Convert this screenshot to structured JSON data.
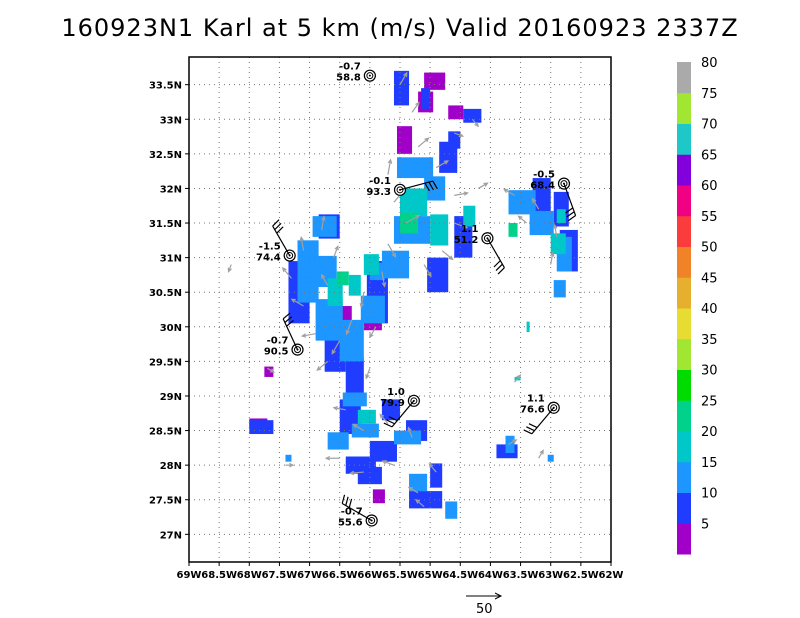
{
  "title": "160923N1 Karl at 5 km (m/s) Valid 20160923 2337Z",
  "map": {
    "lon_range": [
      -69,
      -62
    ],
    "lat_range": [
      26.6,
      33.9
    ],
    "lon_ticks": [
      -69,
      -68.5,
      -68,
      -67.5,
      -67,
      -66.5,
      -66,
      -65.5,
      -65,
      -64.5,
      -64,
      -63.5,
      -63,
      -62.5,
      -62
    ],
    "lon_tick_labels": [
      "69W",
      "68.5W",
      "68W",
      "67.5W",
      "67W",
      "66.5W",
      "66W",
      "65.5W",
      "65W",
      "64.5W",
      "64W",
      "63.5W",
      "63W",
      "62.5W",
      "62W"
    ],
    "lat_ticks": [
      27,
      27.5,
      28,
      28.5,
      29,
      29.5,
      30,
      30.5,
      31,
      31.5,
      32,
      32.5,
      33,
      33.5
    ],
    "lat_tick_labels": [
      "27N",
      "27.5N",
      "28N",
      "28.5N",
      "29N",
      "29.5N",
      "30N",
      "30.5N",
      "31N",
      "31.5N",
      "32N",
      "32.5N",
      "33N",
      "33.5N"
    ],
    "grid": true,
    "arrow_color": "#a0a0a0"
  },
  "colorbar": {
    "labels": [
      "5",
      "10",
      "15",
      "20",
      "25",
      "30",
      "35",
      "40",
      "45",
      "50",
      "55",
      "60",
      "65",
      "70",
      "75",
      "80"
    ],
    "colors": [
      "#a000c8",
      "#1f3cff",
      "#1e96ff",
      "#00c8c8",
      "#00d28c",
      "#00dc00",
      "#a0e632",
      "#e6dc32",
      "#e6af2d",
      "#f08228",
      "#fa3c3c",
      "#f00082",
      "#8200dc",
      "#1ec8c8",
      "#a0e632",
      "#aaaaaa"
    ]
  },
  "reference_vector": {
    "label": "50"
  },
  "observations": [
    {
      "lon": -66.0,
      "lat": 33.63,
      "top": "-0.7",
      "bottom": "58.8"
    },
    {
      "lon": -65.5,
      "lat": 31.98,
      "top": "-0.1",
      "bottom": "93.3"
    },
    {
      "lon": -62.78,
      "lat": 32.07,
      "top": "-0.5",
      "bottom": "68.4"
    },
    {
      "lon": -64.05,
      "lat": 31.28,
      "top": "1.1",
      "bottom": "51.2"
    },
    {
      "lon": -67.33,
      "lat": 31.03,
      "top": "-1.5",
      "bottom": "74.4"
    },
    {
      "lon": -67.2,
      "lat": 29.67,
      "top": "-0.7",
      "bottom": "90.5"
    },
    {
      "lon": -65.27,
      "lat": 28.93,
      "top": "1.0",
      "bottom": "79.9"
    },
    {
      "lon": -62.95,
      "lat": 28.83,
      "top": "1.1",
      "bottom": "76.6"
    },
    {
      "lon": -65.97,
      "lat": 27.2,
      "top": "-0.7",
      "bottom": "55.6"
    }
  ],
  "wind_field": [
    {
      "color": "#a000c8",
      "cells": [
        [
          -65.1,
          33.55,
          0.35,
          0.25
        ],
        [
          -65.2,
          33.25,
          0.25,
          0.3
        ],
        [
          -65.55,
          32.7,
          0.25,
          0.4
        ],
        [
          -66.7,
          30.15,
          0.4,
          0.3
        ],
        [
          -66.1,
          30.1,
          0.3,
          0.3
        ],
        [
          -65.95,
          27.55,
          0.2,
          0.2
        ],
        [
          -68.0,
          28.6,
          0.3,
          0.15
        ],
        [
          -67.75,
          29.35,
          0.15,
          0.15
        ],
        [
          -64.7,
          33.1,
          0.25,
          0.2
        ]
      ]
    },
    {
      "color": "#1f3cff",
      "cells": [
        [
          -65.6,
          33.45,
          0.25,
          0.5
        ],
        [
          -65.15,
          33.3,
          0.15,
          0.3
        ],
        [
          -64.7,
          32.7,
          0.2,
          0.25
        ],
        [
          -64.45,
          33.05,
          0.3,
          0.2
        ],
        [
          -67.35,
          30.5,
          0.35,
          0.9
        ],
        [
          -66.75,
          29.6,
          0.35,
          0.5
        ],
        [
          -66.4,
          29.3,
          0.3,
          0.5
        ],
        [
          -66.05,
          30.5,
          0.35,
          0.9
        ],
        [
          -66.5,
          28.7,
          0.35,
          0.5
        ],
        [
          -66.0,
          28.2,
          0.45,
          0.3
        ],
        [
          -66.4,
          28.0,
          0.5,
          0.25
        ],
        [
          -66.2,
          27.85,
          0.4,
          0.25
        ],
        [
          -65.35,
          27.5,
          0.55,
          0.25
        ],
        [
          -65.0,
          27.85,
          0.2,
          0.35
        ],
        [
          -63.9,
          28.2,
          0.35,
          0.2
        ],
        [
          -65.8,
          28.8,
          0.3,
          0.3
        ],
        [
          -65.4,
          28.5,
          0.35,
          0.3
        ],
        [
          -64.85,
          32.45,
          0.3,
          0.45
        ],
        [
          -65.45,
          31.5,
          0.3,
          0.4
        ],
        [
          -64.6,
          31.3,
          0.3,
          0.6
        ],
        [
          -65.05,
          30.75,
          0.35,
          0.5
        ],
        [
          -63.3,
          31.9,
          0.3,
          0.5
        ],
        [
          -62.95,
          31.7,
          0.25,
          0.5
        ],
        [
          -62.85,
          31.1,
          0.3,
          0.6
        ],
        [
          -68.0,
          28.55,
          0.4,
          0.2
        ],
        [
          -66.85,
          31.45,
          0.35,
          0.35
        ]
      ]
    },
    {
      "color": "#1e96ff",
      "cells": [
        [
          -65.55,
          32.3,
          0.6,
          0.3
        ],
        [
          -65.1,
          32.0,
          0.35,
          0.35
        ],
        [
          -65.6,
          31.4,
          0.6,
          0.4
        ],
        [
          -65.8,
          30.9,
          0.45,
          0.4
        ],
        [
          -66.15,
          30.25,
          0.4,
          0.4
        ],
        [
          -66.5,
          29.8,
          0.4,
          0.6
        ],
        [
          -66.9,
          30.1,
          0.45,
          0.6
        ],
        [
          -67.2,
          30.8,
          0.35,
          0.9
        ],
        [
          -66.95,
          31.45,
          0.4,
          0.3
        ],
        [
          -66.9,
          30.8,
          0.35,
          0.45
        ],
        [
          -66.7,
          28.35,
          0.35,
          0.25
        ],
        [
          -66.3,
          28.5,
          0.45,
          0.2
        ],
        [
          -65.6,
          28.4,
          0.45,
          0.2
        ],
        [
          -63.7,
          31.8,
          0.45,
          0.35
        ],
        [
          -63.35,
          31.5,
          0.4,
          0.35
        ],
        [
          -62.9,
          31.05,
          0.25,
          0.5
        ],
        [
          -62.95,
          30.55,
          0.2,
          0.25
        ],
        [
          -65.35,
          27.75,
          0.3,
          0.25
        ],
        [
          -64.75,
          27.35,
          0.2,
          0.25
        ],
        [
          -66.0,
          30.8,
          0.25,
          0.25
        ],
        [
          -63.75,
          28.3,
          0.15,
          0.25
        ],
        [
          -66.45,
          28.95,
          0.4,
          0.2
        ],
        [
          -67.4,
          28.1,
          0.1,
          0.1
        ],
        [
          -63.05,
          28.1,
          0.1,
          0.1
        ]
      ]
    },
    {
      "color": "#00c8c8",
      "cells": [
        [
          -65.5,
          31.8,
          0.45,
          0.4
        ],
        [
          -65.0,
          31.4,
          0.3,
          0.45
        ],
        [
          -66.7,
          30.5,
          0.25,
          0.4
        ],
        [
          -66.35,
          30.6,
          0.2,
          0.3
        ],
        [
          -63.0,
          31.2,
          0.25,
          0.3
        ],
        [
          -66.2,
          28.7,
          0.3,
          0.2
        ],
        [
          -64.45,
          31.6,
          0.2,
          0.3
        ],
        [
          -66.1,
          30.9,
          0.25,
          0.3
        ],
        [
          -62.9,
          31.6,
          0.15,
          0.2
        ],
        [
          -63.6,
          29.25,
          0.1,
          0.05
        ],
        [
          -63.4,
          30.0,
          0.05,
          0.15
        ]
      ]
    },
    {
      "color": "#00d28c",
      "cells": [
        [
          -65.5,
          31.5,
          0.3,
          0.3
        ],
        [
          -66.55,
          30.7,
          0.2,
          0.2
        ],
        [
          -63.7,
          31.4,
          0.15,
          0.2
        ]
      ]
    }
  ],
  "wind_arrows": [
    [
      -65.5,
      33.5,
      30,
      0.45
    ],
    [
      -65.3,
      33.1,
      35,
      0.4
    ],
    [
      -65.2,
      32.6,
      50,
      0.45
    ],
    [
      -64.9,
      32.3,
      60,
      0.45
    ],
    [
      -64.6,
      31.9,
      80,
      0.45
    ],
    [
      -64.6,
      31.5,
      110,
      0.45
    ],
    [
      -64.8,
      31.1,
      130,
      0.45
    ],
    [
      -65.1,
      30.9,
      150,
      0.45
    ],
    [
      -65.7,
      32.2,
      10,
      0.5
    ],
    [
      -65.6,
      31.8,
      40,
      0.55
    ],
    [
      -65.4,
      31.5,
      60,
      0.5
    ],
    [
      -65.7,
      31.2,
      150,
      0.5
    ],
    [
      -65.8,
      30.8,
      170,
      0.5
    ],
    [
      -66.1,
      30.5,
      190,
      0.5
    ],
    [
      -66.3,
      30.1,
      200,
      0.5
    ],
    [
      -66.5,
      29.8,
      210,
      0.5
    ],
    [
      -66.7,
      29.5,
      230,
      0.45
    ],
    [
      -66.9,
      29.9,
      260,
      0.45
    ],
    [
      -67.1,
      30.3,
      300,
      0.45
    ],
    [
      -67.3,
      30.7,
      320,
      0.45
    ],
    [
      -67.1,
      31.1,
      350,
      0.45
    ],
    [
      -66.8,
      31.4,
      10,
      0.45
    ],
    [
      -66.6,
      31.0,
      20,
      0.4
    ],
    [
      -66.7,
      30.6,
      330,
      0.4
    ],
    [
      -66.4,
      28.8,
      280,
      0.4
    ],
    [
      -66.1,
      28.5,
      300,
      0.4
    ],
    [
      -65.7,
      28.6,
      320,
      0.4
    ],
    [
      -65.3,
      28.4,
      340,
      0.35
    ],
    [
      -66.5,
      28.1,
      270,
      0.45
    ],
    [
      -66.1,
      27.9,
      265,
      0.45
    ],
    [
      -65.6,
      28.0,
      290,
      0.4
    ],
    [
      -65.2,
      27.6,
      300,
      0.35
    ],
    [
      -64.9,
      27.9,
      320,
      0.35
    ],
    [
      -65.1,
      27.4,
      310,
      0.35
    ],
    [
      -63.6,
      31.9,
      300,
      0.4
    ],
    [
      -63.2,
      31.7,
      330,
      0.4
    ],
    [
      -62.9,
      31.3,
      350,
      0.4
    ],
    [
      -63.0,
      30.9,
      10,
      0.4
    ],
    [
      -63.4,
      31.5,
      310,
      0.35
    ],
    [
      -64.2,
      32.0,
      60,
      0.35
    ],
    [
      -64.6,
      32.8,
      110,
      0.3
    ],
    [
      -64.3,
      33.0,
      140,
      0.3
    ],
    [
      -63.7,
      28.3,
      60,
      0.3
    ],
    [
      -63.2,
      28.1,
      30,
      0.3
    ],
    [
      -68.3,
      30.9,
      200,
      0.25
    ],
    [
      -67.7,
      29.4,
      120,
      0.25
    ],
    [
      -67.4,
      28.0,
      90,
      0.25
    ],
    [
      -63.6,
      29.2,
      40,
      0.3
    ],
    [
      -65.9,
      30.0,
      210,
      0.4
    ],
    [
      -66.0,
      29.4,
      200,
      0.35
    ]
  ]
}
